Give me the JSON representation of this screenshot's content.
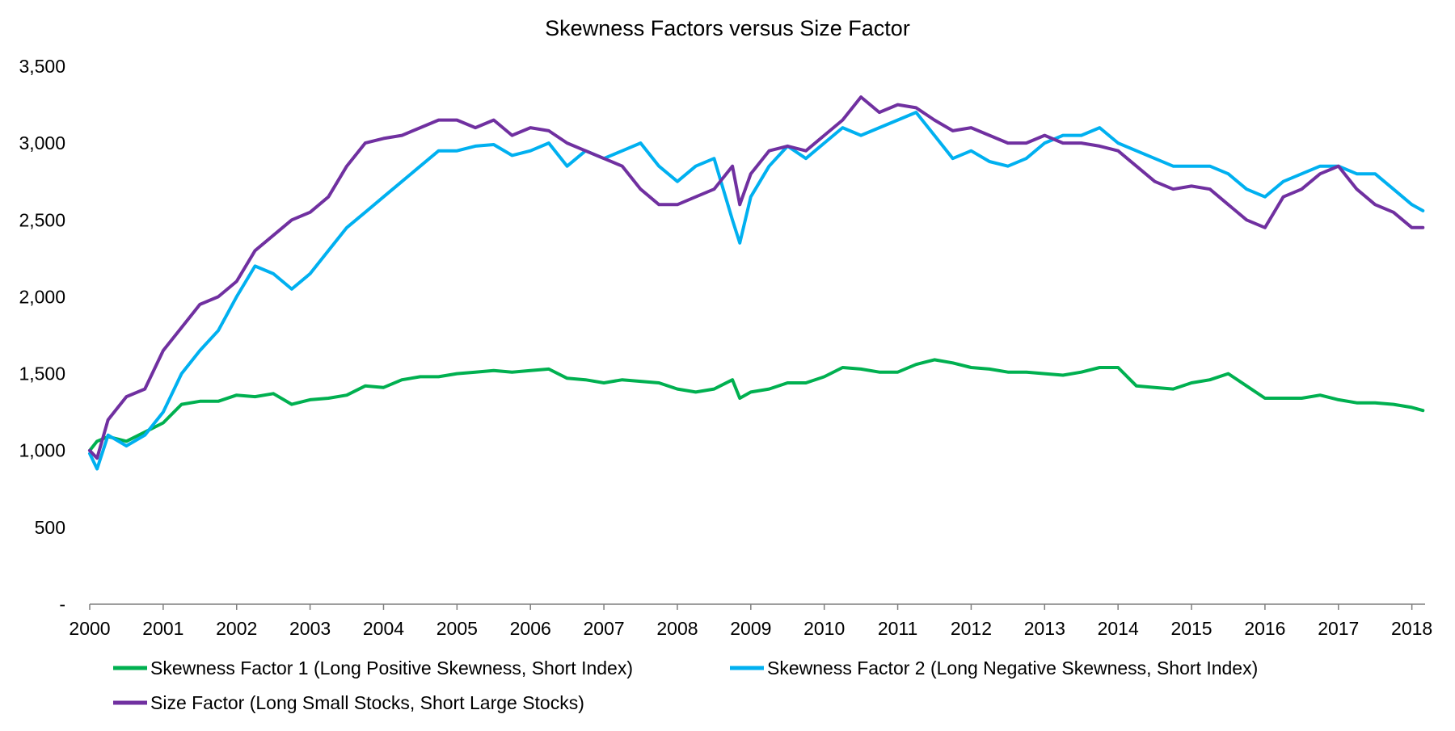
{
  "chart_data": {
    "type": "line",
    "title": "Skewness Factors versus Size Factor",
    "xlabel": "",
    "ylabel": "",
    "xlim": [
      2000,
      2018.18
    ],
    "ylim": [
      0,
      3500
    ],
    "y_ticks": [
      0,
      500,
      1000,
      1500,
      2000,
      2500,
      3000,
      3500
    ],
    "y_tick_labels": [
      "-",
      "500",
      "1,000",
      "1,500",
      "2,000",
      "2,500",
      "3,000",
      "3,500"
    ],
    "x_ticks": [
      2000,
      2001,
      2002,
      2003,
      2004,
      2005,
      2006,
      2007,
      2008,
      2009,
      2010,
      2011,
      2012,
      2013,
      2014,
      2015,
      2016,
      2017,
      2018
    ],
    "x_tick_labels": [
      "2000",
      "2001",
      "2002",
      "2003",
      "2004",
      "2005",
      "2006",
      "2007",
      "2008",
      "2009",
      "2010",
      "2011",
      "2012",
      "2013",
      "2014",
      "2015",
      "2016",
      "2017",
      "2018"
    ],
    "grid": false,
    "legend_position": "bottom",
    "x": [
      2000,
      2000.1,
      2000.25,
      2000.5,
      2000.75,
      2001,
      2001.25,
      2001.5,
      2001.75,
      2002,
      2002.25,
      2002.5,
      2002.75,
      2003,
      2003.25,
      2003.5,
      2003.75,
      2004,
      2004.25,
      2004.5,
      2004.75,
      2005,
      2005.25,
      2005.5,
      2005.75,
      2006,
      2006.25,
      2006.5,
      2006.75,
      2007,
      2007.25,
      2007.5,
      2007.75,
      2008,
      2008.25,
      2008.5,
      2008.75,
      2008.85,
      2009,
      2009.25,
      2009.5,
      2009.75,
      2010,
      2010.25,
      2010.5,
      2010.75,
      2011,
      2011.25,
      2011.5,
      2011.75,
      2012,
      2012.25,
      2012.5,
      2012.75,
      2013,
      2013.25,
      2013.5,
      2013.75,
      2014,
      2014.25,
      2014.5,
      2014.75,
      2015,
      2015.25,
      2015.5,
      2015.75,
      2016,
      2016.25,
      2016.5,
      2016.75,
      2017,
      2017.25,
      2017.5,
      2017.75,
      2018,
      2018.15
    ],
    "series": [
      {
        "name": "Skewness Factor 1 (Long Positive Skewness, Short Index)",
        "color": "#00B050",
        "values": [
          1000,
          1060,
          1090,
          1060,
          1120,
          1180,
          1300,
          1320,
          1320,
          1360,
          1350,
          1370,
          1300,
          1330,
          1340,
          1360,
          1420,
          1410,
          1460,
          1480,
          1480,
          1500,
          1510,
          1520,
          1510,
          1520,
          1530,
          1470,
          1460,
          1440,
          1460,
          1450,
          1440,
          1400,
          1380,
          1400,
          1460,
          1340,
          1380,
          1400,
          1440,
          1440,
          1480,
          1540,
          1530,
          1510,
          1510,
          1560,
          1590,
          1570,
          1540,
          1530,
          1510,
          1510,
          1500,
          1490,
          1510,
          1540,
          1540,
          1420,
          1410,
          1400,
          1440,
          1460,
          1500,
          1420,
          1340,
          1340,
          1340,
          1360,
          1330,
          1310,
          1310,
          1300,
          1280,
          1260
        ]
      },
      {
        "name": "Skewness Factor 2 (Long Negative Skewness, Short Index)",
        "color": "#00B0F0",
        "values": [
          980,
          880,
          1100,
          1030,
          1100,
          1250,
          1500,
          1650,
          1780,
          2000,
          2200,
          2150,
          2050,
          2150,
          2300,
          2450,
          2550,
          2650,
          2750,
          2850,
          2950,
          2950,
          2980,
          2990,
          2920,
          2950,
          3000,
          2850,
          2950,
          2900,
          2950,
          3000,
          2850,
          2750,
          2850,
          2900,
          2500,
          2350,
          2650,
          2850,
          2980,
          2900,
          3000,
          3100,
          3050,
          3100,
          3150,
          3200,
          3050,
          2900,
          2950,
          2880,
          2850,
          2900,
          3000,
          3050,
          3050,
          3100,
          3000,
          2950,
          2900,
          2850,
          2850,
          2850,
          2800,
          2700,
          2650,
          2750,
          2800,
          2850,
          2850,
          2800,
          2800,
          2700,
          2600,
          2560
        ]
      },
      {
        "name": "Size Factor (Long Small Stocks, Short Large Stocks)",
        "color": "#7030A0",
        "values": [
          1000,
          950,
          1200,
          1350,
          1400,
          1650,
          1800,
          1950,
          2000,
          2100,
          2300,
          2400,
          2500,
          2550,
          2650,
          2850,
          3000,
          3030,
          3050,
          3100,
          3150,
          3150,
          3100,
          3150,
          3050,
          3100,
          3080,
          3000,
          2950,
          2900,
          2850,
          2700,
          2600,
          2600,
          2650,
          2700,
          2850,
          2600,
          2800,
          2950,
          2980,
          2950,
          3050,
          3150,
          3300,
          3200,
          3250,
          3230,
          3150,
          3080,
          3100,
          3050,
          3000,
          3000,
          3050,
          3000,
          3000,
          2980,
          2950,
          2850,
          2750,
          2700,
          2720,
          2700,
          2600,
          2500,
          2450,
          2650,
          2700,
          2800,
          2850,
          2700,
          2600,
          2550,
          2450,
          2450
        ]
      }
    ]
  }
}
